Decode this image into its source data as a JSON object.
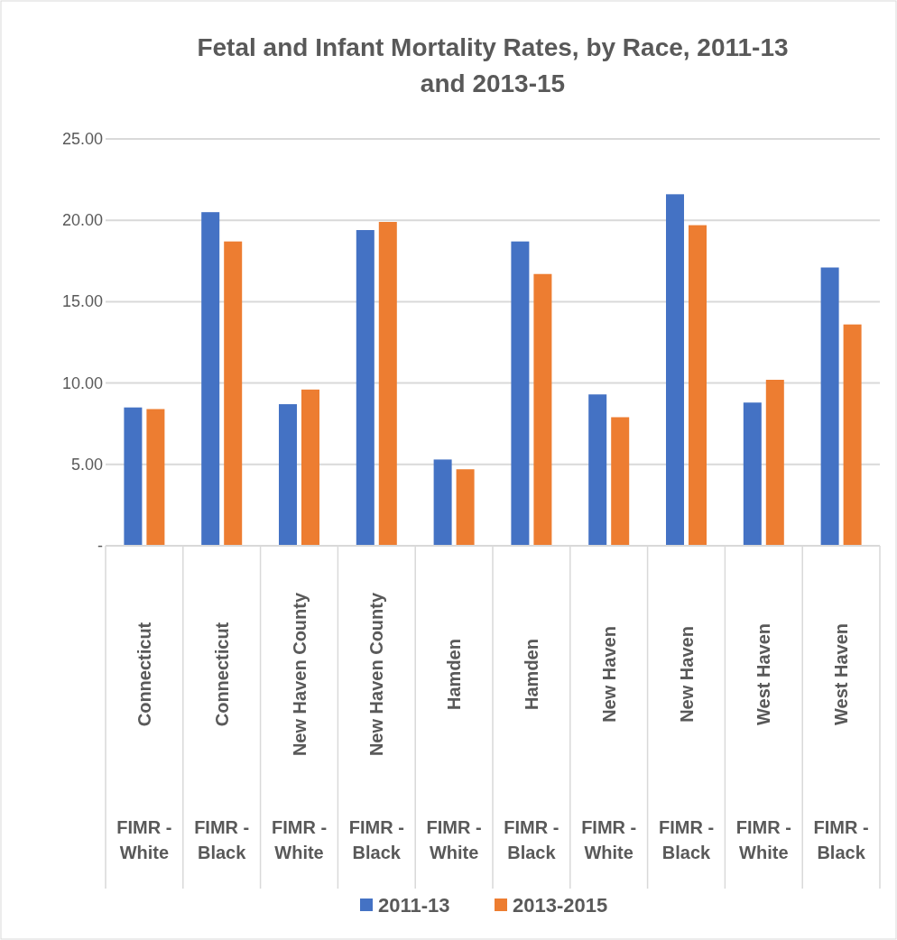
{
  "chart_data": {
    "type": "bar",
    "title": "Fetal and Infant Mortality Rates, by Race, 2011-13 and 2013-15",
    "categories": [
      "Connecticut\nFIMR - White",
      "Connecticut\nFIMR - Black",
      "New Haven County\nFIMR - White",
      "New Haven County\nFIMR - Black",
      "Hamden\nFIMR - White",
      "Hamden\nFIMR - Black",
      "New Haven\nFIMR - White",
      "New Haven\nFIMR - Black",
      "West Haven\nFIMR - White",
      "West Haven\nFIMR - Black"
    ],
    "series": [
      {
        "name": "2011-13",
        "color": "#4472c4",
        "values": [
          8.5,
          20.5,
          8.7,
          19.4,
          5.3,
          18.7,
          9.3,
          21.6,
          8.8,
          17.1
        ]
      },
      {
        "name": "2013-2015",
        "color": "#ed7d31",
        "values": [
          8.4,
          18.7,
          9.6,
          19.9,
          4.7,
          16.7,
          7.9,
          19.7,
          10.2,
          13.6
        ]
      }
    ],
    "ylim": [
      0,
      25
    ],
    "yticks": [
      {
        "value": 0,
        "label": "-"
      },
      {
        "value": 5,
        "label": "5.00"
      },
      {
        "value": 10,
        "label": "10.00"
      },
      {
        "value": 15,
        "label": "15.00"
      },
      {
        "value": 20,
        "label": "20.00"
      },
      {
        "value": 25,
        "label": "25.00"
      }
    ],
    "grid": "y",
    "legend": "bottom"
  }
}
